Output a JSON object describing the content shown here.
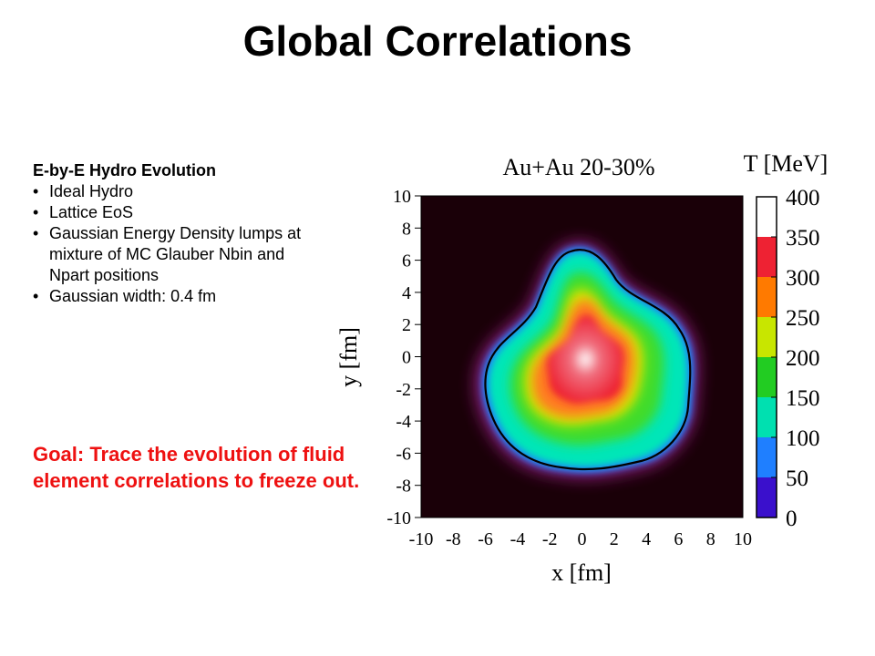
{
  "slide": {
    "title": "Global Correlations",
    "section_heading": "E-by-E Hydro Evolution",
    "bullets": [
      "Ideal Hydro",
      "Lattice EoS",
      "Gaussian Energy Density lumps at mixture of MC Glauber Nbin and Npart positions",
      "Gaussian width: 0.4 fm"
    ],
    "goal_text": "Goal: Trace the evolution of fluid element correlations to freeze out."
  },
  "chart_data": {
    "type": "heatmap",
    "title": "Au+Au 20-30%",
    "xlabel": "x [fm]",
    "ylabel": "y [fm]",
    "xlim": [
      -10,
      10
    ],
    "ylim": [
      -10,
      10
    ],
    "x_ticks": [
      "-10",
      "-8",
      "-6",
      "-4",
      "-2",
      "0",
      "2",
      "4",
      "6",
      "8",
      "10"
    ],
    "y_ticks": [
      "10",
      "8",
      "6",
      "4",
      "2",
      "0",
      "-2",
      "-4",
      "-6",
      "-8",
      "-10"
    ],
    "colorbar_label": "T [MeV]",
    "colorbar_range": [
      0,
      400
    ],
    "colorbar_ticks": [
      "400",
      "350",
      "300",
      "250",
      "200",
      "150",
      "100",
      "50",
      "0"
    ],
    "colorbar_colors": [
      "#ffffff",
      "#ee2233",
      "#ff7a00",
      "#c8e600",
      "#22cc22",
      "#00e0b0",
      "#1f7fff",
      "#3a10cc"
    ],
    "background_color": "#1a0008",
    "contour_color": "#000000"
  }
}
